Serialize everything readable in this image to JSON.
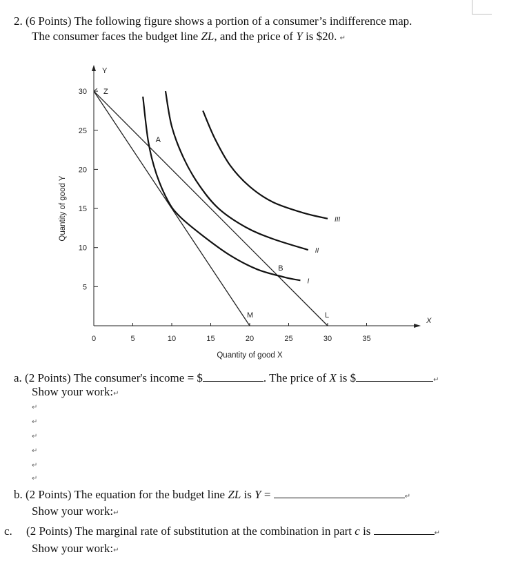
{
  "question": {
    "number": "2.",
    "intro_line1": "(6 Points) The following figure shows a portion of a consumer’s indifference map.",
    "intro_line2_a": "The consumer faces the budget line ",
    "intro_line2_zl": "ZL",
    "intro_line2_b": ", and the price of ",
    "intro_line2_y": "Y",
    "intro_line2_c": " is $20.",
    "para_mark": "↵"
  },
  "chart_data": {
    "type": "line",
    "xlabel": "Quantity of good X",
    "ylabel": "Quantity of good Y",
    "x_axis_letter": "X",
    "y_axis_letter": "Y",
    "xlim": [
      0,
      37
    ],
    "ylim": [
      0,
      32
    ],
    "x_ticks": [
      0,
      5,
      10,
      15,
      20,
      25,
      30,
      35
    ],
    "y_ticks": [
      5,
      10,
      15,
      20,
      25,
      30
    ],
    "lines": [
      {
        "name": "ZL",
        "points": [
          [
            0,
            30
          ],
          [
            30,
            0
          ]
        ]
      },
      {
        "name": "ZM",
        "points": [
          [
            0,
            30
          ],
          [
            20,
            0
          ]
        ]
      }
    ],
    "curves": [
      {
        "label": "I",
        "points": [
          [
            6.3,
            29.3
          ],
          [
            7,
            23.5
          ],
          [
            8,
            19.5
          ],
          [
            9.5,
            16
          ],
          [
            11,
            14
          ],
          [
            14,
            11.5
          ],
          [
            17.5,
            9
          ],
          [
            21,
            7.2
          ],
          [
            24.5,
            6.2
          ],
          [
            26.5,
            5.8
          ]
        ]
      },
      {
        "label": "II",
        "points": [
          [
            9.2,
            30
          ],
          [
            10,
            25.5
          ],
          [
            11.5,
            21.5
          ],
          [
            13.5,
            18
          ],
          [
            16,
            15
          ],
          [
            19.5,
            12.6
          ],
          [
            23,
            11.1
          ],
          [
            27.5,
            9.7
          ]
        ]
      },
      {
        "label": "III",
        "points": [
          [
            14,
            27.5
          ],
          [
            15.5,
            24
          ],
          [
            17.5,
            20.5
          ],
          [
            20,
            17.8
          ],
          [
            23,
            15.8
          ],
          [
            27,
            14.4
          ],
          [
            30,
            13.7
          ]
        ]
      }
    ],
    "points": [
      {
        "label": "Z",
        "x": 0,
        "y": 30
      },
      {
        "label": "A",
        "x": 7.4,
        "y": 22.6
      },
      {
        "label": "B",
        "x": 24,
        "y": 6.2
      },
      {
        "label": "M",
        "x": 20,
        "y": 0
      },
      {
        "label": "L",
        "x": 30,
        "y": 0
      }
    ]
  },
  "part_a": {
    "letter": "a.",
    "text1": "(2 Points) The consumer's income = $",
    "text2": ". The price of ",
    "text_x": "X",
    "text3": " is $",
    "show_work": "Show your work:"
  },
  "part_b": {
    "letter": "b.",
    "text1": "(2 Points) The equation for the budget line ",
    "text_zl": "ZL",
    "text2": " is ",
    "text_y": "Y",
    "text3": " =",
    "show_work": "Show your work:"
  },
  "part_c": {
    "letter": "c.",
    "text1": "(2 Points) The marginal rate of substitution at the combination in part ",
    "text_c": "c",
    "text2": " is",
    "show_work": "Show your work:"
  }
}
